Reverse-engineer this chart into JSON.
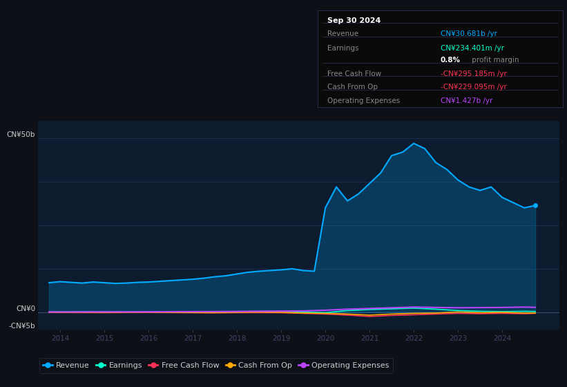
{
  "background_color": "#0d1117",
  "plot_bg_color": "#0d1b2e",
  "grid_color": "#1e3050",
  "revenue_color": "#00aaff",
  "earnings_color": "#00ffcc",
  "fcf_color": "#ff3355",
  "cashfromop_color": "#ffaa00",
  "opex_color": "#bb44ff",
  "ylim": [
    -5000000000,
    55000000000
  ],
  "xlim_start": 2013.5,
  "xlim_end": 2025.3,
  "xticks": [
    2014,
    2015,
    2016,
    2017,
    2018,
    2019,
    2020,
    2021,
    2022,
    2023,
    2024
  ],
  "revenue_x": [
    2013.75,
    2014.0,
    2014.25,
    2014.5,
    2014.75,
    2015.0,
    2015.25,
    2015.5,
    2015.75,
    2016.0,
    2016.25,
    2016.5,
    2016.75,
    2017.0,
    2017.25,
    2017.5,
    2017.75,
    2018.0,
    2018.25,
    2018.5,
    2018.75,
    2019.0,
    2019.25,
    2019.5,
    2019.75,
    2020.0,
    2020.25,
    2020.5,
    2020.75,
    2021.0,
    2021.25,
    2021.5,
    2021.75,
    2022.0,
    2022.25,
    2022.5,
    2022.75,
    2023.0,
    2023.25,
    2023.5,
    2023.75,
    2024.0,
    2024.25,
    2024.5,
    2024.75
  ],
  "revenue_y": [
    8500000000,
    8800000000,
    8600000000,
    8400000000,
    8700000000,
    8500000000,
    8300000000,
    8400000000,
    8600000000,
    8700000000,
    8900000000,
    9100000000,
    9300000000,
    9500000000,
    9800000000,
    10200000000,
    10500000000,
    11000000000,
    11500000000,
    11800000000,
    12000000000,
    12200000000,
    12500000000,
    12000000000,
    11800000000,
    30000000000,
    36000000000,
    32000000000,
    34000000000,
    37000000000,
    40000000000,
    45000000000,
    46000000000,
    48500000000,
    47000000000,
    43000000000,
    41000000000,
    38000000000,
    36000000000,
    35000000000,
    36000000000,
    33000000000,
    31500000000,
    30000000000,
    30681000000
  ],
  "earnings_x": [
    2013.75,
    2014.0,
    2014.5,
    2015.0,
    2015.5,
    2016.0,
    2016.5,
    2017.0,
    2017.5,
    2018.0,
    2018.5,
    2019.0,
    2019.5,
    2020.0,
    2020.5,
    2021.0,
    2021.5,
    2022.0,
    2022.5,
    2023.0,
    2023.5,
    2024.0,
    2024.5,
    2024.75
  ],
  "earnings_y": [
    100000000,
    120000000,
    150000000,
    120000000,
    100000000,
    130000000,
    140000000,
    180000000,
    200000000,
    220000000,
    250000000,
    280000000,
    100000000,
    -100000000,
    500000000,
    800000000,
    1000000000,
    1200000000,
    900000000,
    500000000,
    300000000,
    200000000,
    300000000,
    234000000
  ],
  "fcf_x": [
    2013.75,
    2014.0,
    2014.5,
    2015.0,
    2015.5,
    2016.0,
    2016.5,
    2017.0,
    2017.5,
    2018.0,
    2018.5,
    2019.0,
    2019.5,
    2020.0,
    2020.5,
    2021.0,
    2021.5,
    2022.0,
    2022.5,
    2023.0,
    2023.5,
    2024.0,
    2024.5,
    2024.75
  ],
  "fcf_y": [
    -50000000,
    -60000000,
    -80000000,
    -100000000,
    -70000000,
    -50000000,
    -80000000,
    -120000000,
    -150000000,
    -100000000,
    -80000000,
    -120000000,
    -300000000,
    -500000000,
    -800000000,
    -1200000000,
    -900000000,
    -700000000,
    -500000000,
    -300000000,
    -400000000,
    -300000000,
    -400000000,
    -295000000
  ],
  "cashfromop_x": [
    2013.75,
    2014.0,
    2014.5,
    2015.0,
    2015.5,
    2016.0,
    2016.5,
    2017.0,
    2017.5,
    2018.0,
    2018.5,
    2019.0,
    2019.5,
    2020.0,
    2020.5,
    2021.0,
    2021.5,
    2022.0,
    2022.5,
    2023.0,
    2023.5,
    2024.0,
    2024.5,
    2024.75
  ],
  "cashfromop_y": [
    50000000,
    40000000,
    20000000,
    0,
    30000000,
    50000000,
    0,
    -50000000,
    -80000000,
    0,
    50000000,
    0,
    -200000000,
    -300000000,
    -500000000,
    -800000000,
    -500000000,
    -300000000,
    -200000000,
    100000000,
    -100000000,
    0,
    -200000000,
    -229000000
  ],
  "opex_x": [
    2013.75,
    2014.0,
    2014.5,
    2015.0,
    2015.5,
    2016.0,
    2016.5,
    2017.0,
    2017.5,
    2018.0,
    2018.5,
    2019.0,
    2019.5,
    2020.0,
    2020.5,
    2021.0,
    2021.5,
    2022.0,
    2022.5,
    2023.0,
    2023.5,
    2024.0,
    2024.5,
    2024.75
  ],
  "opex_y": [
    100000000,
    110000000,
    120000000,
    150000000,
    130000000,
    150000000,
    180000000,
    200000000,
    220000000,
    250000000,
    300000000,
    350000000,
    400000000,
    600000000,
    900000000,
    1100000000,
    1300000000,
    1500000000,
    1400000000,
    1300000000,
    1350000000,
    1400000000,
    1500000000,
    1427000000
  ]
}
